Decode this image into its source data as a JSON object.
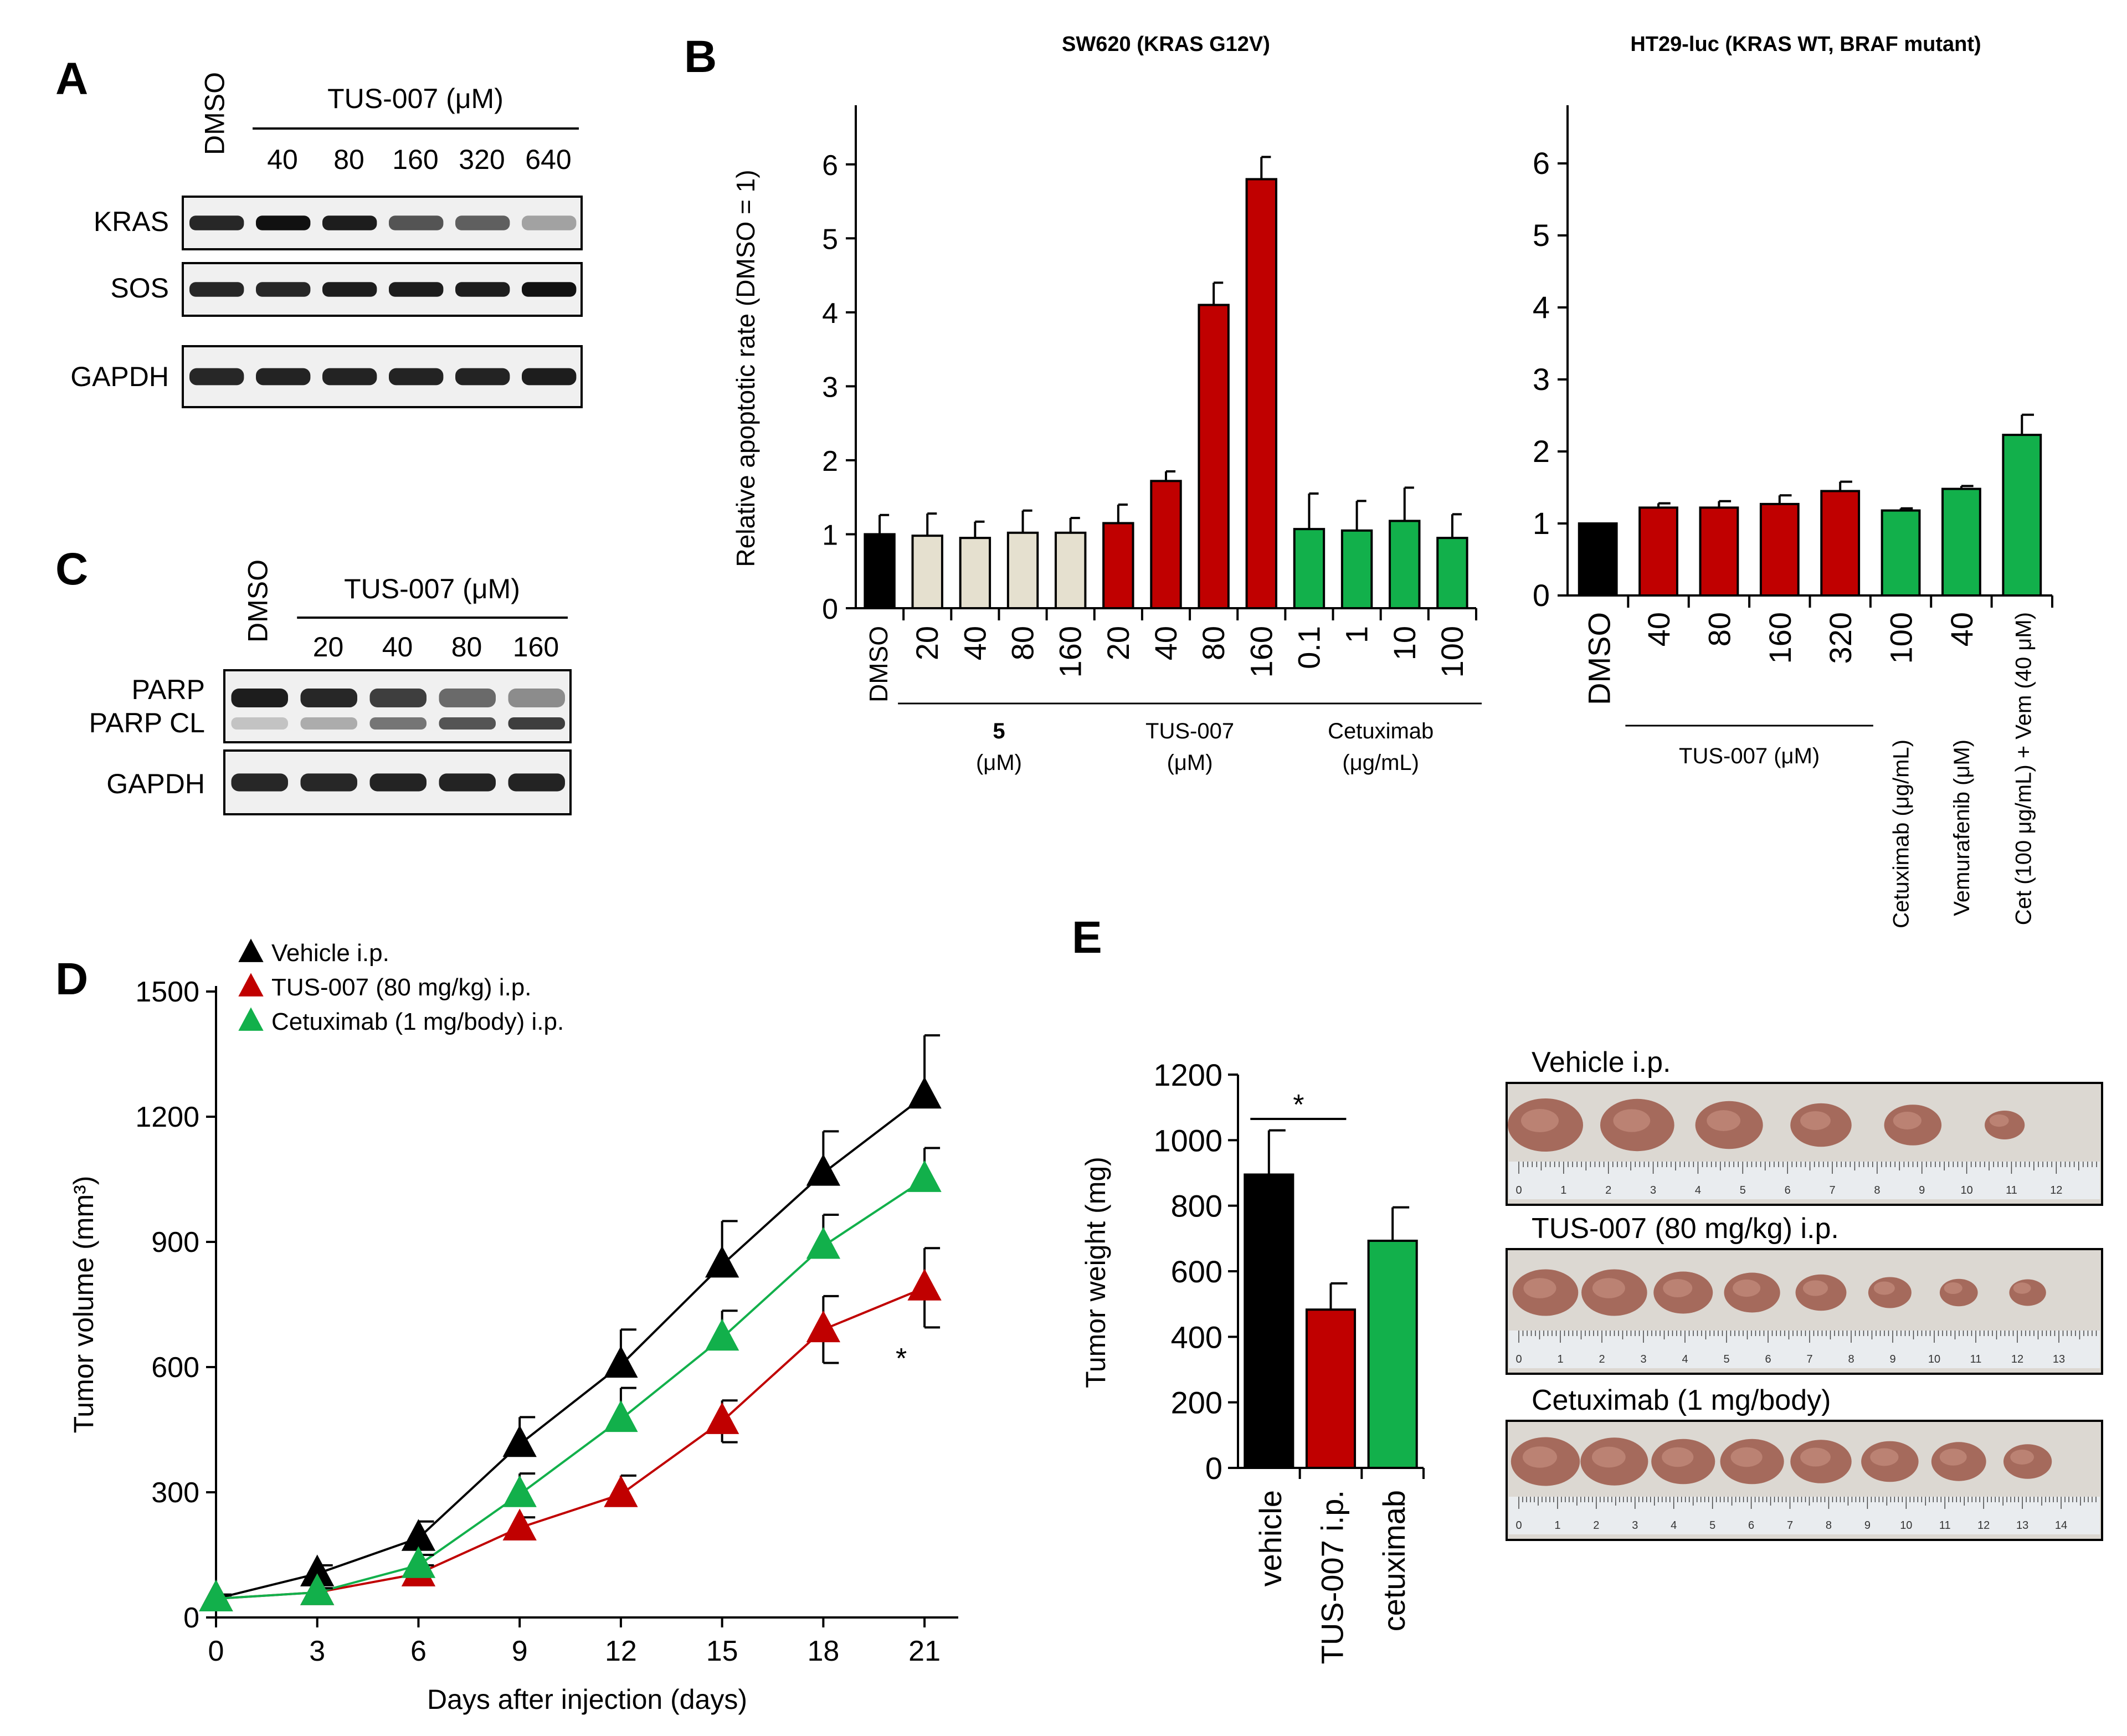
{
  "panels": {
    "A": {
      "label": "A",
      "lane_header": "DMSO",
      "treatment": "TUS-007 (μM)",
      "doses": [
        "40",
        "80",
        "160",
        "320",
        "640"
      ],
      "rows": [
        "KRAS",
        "SOS",
        "GAPDH"
      ]
    },
    "C": {
      "label": "C",
      "lane_header": "DMSO",
      "treatment": "TUS-007 (μM)",
      "doses": [
        "20",
        "40",
        "80",
        "160"
      ],
      "rows": [
        "PARP",
        "PARP CL",
        "GAPDH"
      ]
    },
    "B": {
      "label": "B"
    },
    "D": {
      "label": "D"
    },
    "E": {
      "label": "E",
      "photo_labels": [
        "Vehicle i.p.",
        "TUS-007 (80 mg/kg) i.p.",
        "Cetuximab (1 mg/body)"
      ],
      "ruler_numbers": [
        [
          "0",
          "1",
          "2",
          "3",
          "4",
          "5",
          "6",
          "7",
          "8",
          "9",
          "10",
          "11",
          "12"
        ],
        [
          "0",
          "1",
          "2",
          "3",
          "4",
          "5",
          "6",
          "7",
          "8",
          "9",
          "10",
          "11",
          "12",
          "13"
        ],
        [
          "0",
          "1",
          "2",
          "3",
          "4",
          "5",
          "6",
          "7",
          "8",
          "9",
          "10",
          "11",
          "12",
          "13",
          "14"
        ]
      ],
      "tumor_counts": [
        6,
        8,
        8
      ]
    }
  },
  "colors": {
    "black": "#000000",
    "beige": "#e5e0cf",
    "red": "#c00000",
    "green": "#12b04b"
  },
  "chart_data": [
    {
      "id": "B-left",
      "type": "bar",
      "title": "SW620 (KRAS G12V)",
      "ylabel": "Relative apoptotic rate (DMSO = 1)",
      "ylim": [
        0,
        6.5
      ],
      "yticks": [
        "0",
        "1",
        "2",
        "3",
        "4",
        "5",
        "6"
      ],
      "categories": [
        "DMSO",
        "20",
        "40",
        "80",
        "160",
        "20",
        "40",
        "80",
        "160",
        "0.1",
        "1",
        "10",
        "100"
      ],
      "values": [
        1.0,
        0.98,
        0.95,
        1.02,
        1.02,
        1.15,
        1.72,
        4.1,
        5.8,
        1.07,
        1.05,
        1.18,
        0.95
      ],
      "errors": [
        0.26,
        0.3,
        0.22,
        0.3,
        0.2,
        0.25,
        0.13,
        0.3,
        0.3,
        0.48,
        0.4,
        0.45,
        0.32
      ],
      "colors": [
        "black",
        "beige",
        "beige",
        "beige",
        "beige",
        "red",
        "red",
        "red",
        "red",
        "green",
        "green",
        "green",
        "green"
      ],
      "groups": [
        {
          "name": "5",
          "unit": "(μM)",
          "start": 1,
          "end": 4
        },
        {
          "name": "TUS-007",
          "unit": "(μM)",
          "start": 5,
          "end": 8
        },
        {
          "name": "Cetuximab",
          "unit": "(μg/mL)",
          "start": 9,
          "end": 12
        }
      ]
    },
    {
      "id": "B-right",
      "type": "bar",
      "title": "HT29-luc (KRAS WT, BRAF mutant)",
      "ylim": [
        0,
        6.5
      ],
      "yticks": [
        "0",
        "1",
        "2",
        "3",
        "4",
        "5",
        "6"
      ],
      "categories": [
        "DMSO",
        "40",
        "80",
        "160",
        "320",
        "100",
        "40",
        "Cet (100 μg/mL) + Vem (40 μM)"
      ],
      "values": [
        1.0,
        1.22,
        1.22,
        1.27,
        1.45,
        1.18,
        1.48,
        2.23
      ],
      "errors": [
        0.0,
        0.06,
        0.09,
        0.12,
        0.13,
        0.03,
        0.04,
        0.28
      ],
      "colors": [
        "black",
        "red",
        "red",
        "red",
        "red",
        "green",
        "green",
        "green"
      ],
      "group_label": "TUS-007 (μM)",
      "extra_labels": [
        "Cetuximab (μg/mL)",
        "Vemurafenib (μM)"
      ]
    },
    {
      "id": "D",
      "type": "line",
      "xlabel": "Days after injection (days)",
      "ylabel": "Tumor volume (mm³)",
      "xlim": [
        0,
        22
      ],
      "ylim": [
        0,
        1500
      ],
      "xticks": [
        "0",
        "3",
        "6",
        "9",
        "12",
        "15",
        "18",
        "21"
      ],
      "yticks": [
        "0",
        "300",
        "600",
        "900",
        "1200",
        "1500"
      ],
      "x": [
        0,
        3,
        6,
        9,
        12,
        15,
        18,
        21
      ],
      "series": [
        {
          "name": "Vehicle i.p.",
          "color": "black",
          "values": [
            45,
            105,
            190,
            415,
            605,
            845,
            1065,
            1250
          ],
          "errors": [
            10,
            20,
            40,
            65,
            85,
            105,
            100,
            145
          ]
        },
        {
          "name": "TUS-007 (80 mg/kg) i.p.",
          "color": "red",
          "values": [
            45,
            60,
            105,
            215,
            295,
            470,
            690,
            790
          ],
          "errors": [
            8,
            10,
            20,
            25,
            45,
            50,
            80,
            95
          ]
        },
        {
          "name": "Cetuximab (1 mg/body) i.p.",
          "color": "green",
          "values": [
            45,
            60,
            125,
            295,
            475,
            670,
            890,
            1050
          ],
          "errors": [
            8,
            10,
            25,
            50,
            75,
            65,
            75,
            75
          ]
        }
      ],
      "annotation": "*"
    },
    {
      "id": "E",
      "type": "bar",
      "ylabel": "Tumor weight (mg)",
      "ylim": [
        0,
        1200
      ],
      "yticks": [
        "0",
        "200",
        "400",
        "600",
        "800",
        "1000",
        "1200"
      ],
      "categories": [
        "vehicle",
        "TUS-007 i.p.",
        "cetuximab"
      ],
      "values": [
        895,
        483,
        693
      ],
      "errors": [
        135,
        80,
        102
      ],
      "colors": [
        "black",
        "red",
        "green"
      ],
      "annotation": "*"
    }
  ]
}
